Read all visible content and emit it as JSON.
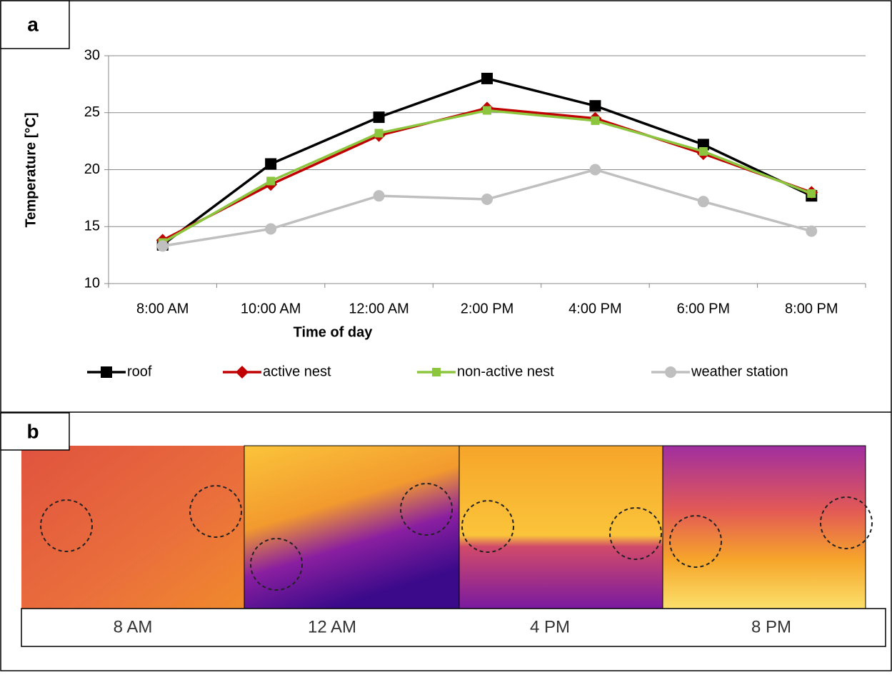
{
  "chart_data": {
    "type": "line",
    "categories": [
      "8:00 AM",
      "10:00 AM",
      "12:00 AM",
      "2:00 PM",
      "4:00 PM",
      "6:00 PM",
      "8:00 PM"
    ],
    "xlabel": "Time of day",
    "ylabel": "Temperature [°C]",
    "ylim": [
      10,
      30
    ],
    "yticks": [
      10,
      15,
      20,
      25,
      30
    ],
    "grid": true,
    "series": [
      {
        "name": "roof",
        "color": "#000000",
        "marker": "square",
        "values": [
          13.4,
          20.5,
          24.6,
          28.0,
          25.6,
          22.2,
          17.7
        ]
      },
      {
        "name": "active nest",
        "color": "#c00000",
        "marker": "diamond",
        "values": [
          13.8,
          18.7,
          23.0,
          25.4,
          24.5,
          21.4,
          18.0
        ]
      },
      {
        "name": "non-active nest",
        "color": "#8cc63f",
        "marker": "small-square",
        "values": [
          13.6,
          19.0,
          23.2,
          25.2,
          24.3,
          21.6,
          17.9
        ]
      },
      {
        "name": "weather station",
        "color": "#bfbfbf",
        "marker": "circle",
        "values": [
          13.3,
          14.8,
          17.7,
          17.4,
          20.0,
          17.2,
          14.6
        ]
      }
    ]
  },
  "panel_labels": [
    "a",
    "b"
  ],
  "image_captions": [
    "8 AM",
    "12 AM",
    "4 PM",
    "8 PM"
  ]
}
